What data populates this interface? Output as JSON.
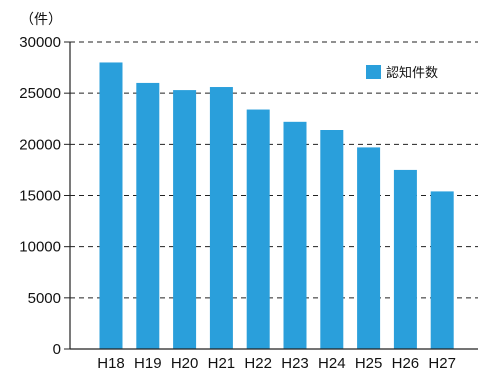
{
  "chart_data": {
    "type": "bar",
    "unit_label": "（件）",
    "categories": [
      "H18",
      "H19",
      "H20",
      "H21",
      "H22",
      "H23",
      "H24",
      "H25",
      "H26",
      "H27"
    ],
    "series": [
      {
        "name": "認知件数",
        "color": "#2a9fdb",
        "values": [
          28000,
          26000,
          25300,
          25600,
          23400,
          22200,
          21400,
          19700,
          17500,
          15400
        ]
      }
    ],
    "yticks": [
      0,
      5000,
      10000,
      15000,
      20000,
      25000,
      30000
    ],
    "ylim": [
      0,
      30000
    ],
    "grid": "dashed horizontal",
    "legend_position": "top-right"
  }
}
